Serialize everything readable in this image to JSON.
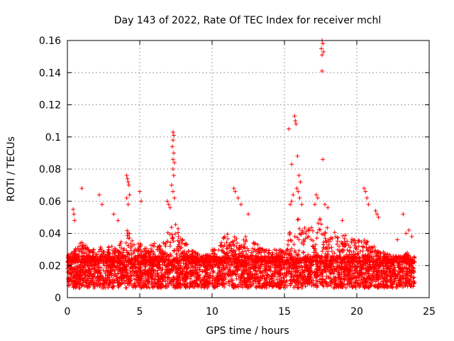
{
  "chart_data": {
    "type": "scatter",
    "title": "Day 143 of 2022, Rate Of TEC Index for receiver mchl",
    "xlabel": "GPS time / hours",
    "ylabel": "ROTI / TECUs",
    "xlim": [
      0,
      25
    ],
    "ylim": [
      0,
      0.16
    ],
    "xticks": [
      0,
      5,
      10,
      15,
      20,
      25
    ],
    "xtick_labels": [
      "0",
      "5",
      "10",
      "15",
      "20",
      "25"
    ],
    "yticks": [
      0,
      0.02,
      0.04,
      0.06,
      0.08,
      0.1,
      0.12,
      0.14,
      0.16
    ],
    "ytick_labels": [
      "0",
      "0.02",
      "0.04",
      "0.06",
      "0.08",
      "0.1",
      "0.12",
      "0.14",
      "0.16"
    ],
    "grid": true,
    "marker": "+",
    "series_color": "#ff0000",
    "dense_band": {
      "x_range": [
        0,
        24
      ],
      "y_low": 0.006,
      "y_high": 0.026
    },
    "activity_envelope": [
      [
        0,
        0.026
      ],
      [
        0.5,
        0.03
      ],
      [
        1,
        0.036
      ],
      [
        1.5,
        0.03
      ],
      [
        2,
        0.034
      ],
      [
        2.5,
        0.03
      ],
      [
        3,
        0.034
      ],
      [
        3.5,
        0.03
      ],
      [
        4,
        0.045
      ],
      [
        4.5,
        0.036
      ],
      [
        5,
        0.034
      ],
      [
        5.5,
        0.032
      ],
      [
        6,
        0.034
      ],
      [
        6.5,
        0.032
      ],
      [
        7,
        0.042
      ],
      [
        7.5,
        0.048
      ],
      [
        8,
        0.036
      ],
      [
        8.5,
        0.032
      ],
      [
        9,
        0.028
      ],
      [
        9.5,
        0.026
      ],
      [
        10,
        0.03
      ],
      [
        10.5,
        0.034
      ],
      [
        11,
        0.04
      ],
      [
        11.5,
        0.038
      ],
      [
        12,
        0.036
      ],
      [
        12.5,
        0.04
      ],
      [
        13,
        0.034
      ],
      [
        13.5,
        0.032
      ],
      [
        14,
        0.03
      ],
      [
        14.5,
        0.03
      ],
      [
        15,
        0.032
      ],
      [
        15.5,
        0.045
      ],
      [
        16,
        0.05
      ],
      [
        16.5,
        0.044
      ],
      [
        17,
        0.046
      ],
      [
        17.5,
        0.05
      ],
      [
        18,
        0.044
      ],
      [
        18.5,
        0.042
      ],
      [
        19,
        0.04
      ],
      [
        19.5,
        0.038
      ],
      [
        20,
        0.036
      ],
      [
        20.5,
        0.036
      ],
      [
        21,
        0.034
      ],
      [
        21.5,
        0.03
      ],
      [
        22,
        0.028
      ],
      [
        22.5,
        0.026
      ],
      [
        23,
        0.026
      ],
      [
        23.5,
        0.028
      ],
      [
        24,
        0.022
      ]
    ],
    "outliers": [
      [
        0.4,
        0.055
      ],
      [
        0.45,
        0.052
      ],
      [
        0.5,
        0.048
      ],
      [
        1.0,
        0.068
      ],
      [
        2.2,
        0.064
      ],
      [
        2.4,
        0.058
      ],
      [
        3.2,
        0.052
      ],
      [
        3.5,
        0.048
      ],
      [
        4.1,
        0.076
      ],
      [
        4.15,
        0.074
      ],
      [
        4.2,
        0.072
      ],
      [
        4.25,
        0.07
      ],
      [
        4.3,
        0.064
      ],
      [
        4.1,
        0.062
      ],
      [
        4.2,
        0.058
      ],
      [
        5.0,
        0.066
      ],
      [
        5.1,
        0.06
      ],
      [
        7.3,
        0.103
      ],
      [
        7.35,
        0.101
      ],
      [
        7.3,
        0.098
      ],
      [
        7.25,
        0.094
      ],
      [
        7.35,
        0.09
      ],
      [
        7.3,
        0.086
      ],
      [
        7.4,
        0.084
      ],
      [
        7.3,
        0.08
      ],
      [
        7.35,
        0.076
      ],
      [
        7.2,
        0.07
      ],
      [
        7.3,
        0.066
      ],
      [
        7.4,
        0.062
      ],
      [
        6.9,
        0.06
      ],
      [
        7.0,
        0.058
      ],
      [
        7.1,
        0.056
      ],
      [
        11.5,
        0.068
      ],
      [
        11.6,
        0.066
      ],
      [
        11.8,
        0.062
      ],
      [
        12.0,
        0.058
      ],
      [
        12.5,
        0.052
      ],
      [
        15.3,
        0.105
      ],
      [
        15.5,
        0.083
      ],
      [
        15.7,
        0.113
      ],
      [
        15.75,
        0.11
      ],
      [
        15.8,
        0.108
      ],
      [
        15.9,
        0.088
      ],
      [
        16.0,
        0.076
      ],
      [
        16.1,
        0.072
      ],
      [
        15.85,
        0.068
      ],
      [
        15.95,
        0.066
      ],
      [
        16.05,
        0.062
      ],
      [
        15.4,
        0.058
      ],
      [
        15.5,
        0.06
      ],
      [
        15.6,
        0.064
      ],
      [
        16.2,
        0.058
      ],
      [
        17.6,
        0.16
      ],
      [
        17.65,
        0.158
      ],
      [
        17.55,
        0.155
      ],
      [
        17.7,
        0.153
      ],
      [
        17.6,
        0.151
      ],
      [
        17.6,
        0.141
      ],
      [
        17.65,
        0.086
      ],
      [
        17.2,
        0.064
      ],
      [
        17.3,
        0.062
      ],
      [
        17.1,
        0.058
      ],
      [
        17.8,
        0.058
      ],
      [
        18.0,
        0.056
      ],
      [
        19.0,
        0.048
      ],
      [
        20.5,
        0.068
      ],
      [
        20.6,
        0.066
      ],
      [
        20.7,
        0.062
      ],
      [
        20.8,
        0.058
      ],
      [
        21.3,
        0.054
      ],
      [
        21.4,
        0.052
      ],
      [
        21.5,
        0.05
      ],
      [
        23.2,
        0.052
      ],
      [
        23.6,
        0.042
      ],
      [
        23.4,
        0.04
      ],
      [
        23.8,
        0.038
      ],
      [
        22.8,
        0.036
      ]
    ]
  }
}
